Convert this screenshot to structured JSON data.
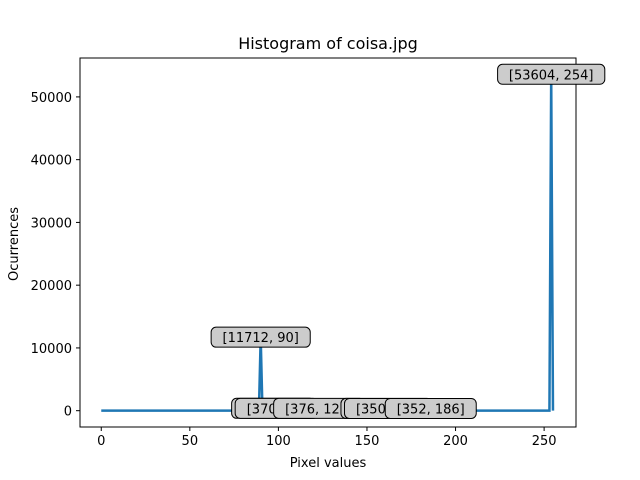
{
  "chart_data": {
    "type": "line",
    "title": "Histogram of coisa.jpg",
    "xlabel": "Pixel values",
    "ylabel": "Ocurrences",
    "xlim": [
      -12,
      268
    ],
    "ylim": [
      -2600,
      56200
    ],
    "xticks": [
      0,
      50,
      100,
      150,
      200,
      250
    ],
    "yticks": [
      0,
      10000,
      20000,
      30000,
      40000,
      50000
    ],
    "grid": false,
    "line_color": "#1f77b4",
    "series": [
      {
        "x": [
          0,
          89,
          90,
          91,
          96,
          97,
          98,
          99,
          100,
          101,
          122,
          123,
          124,
          160,
          161,
          162,
          163,
          164,
          185,
          186,
          187,
          253,
          254,
          255
        ],
        "y": [
          0,
          0,
          11712,
          0,
          0,
          380,
          0,
          370,
          0,
          0,
          0,
          376,
          0,
          0,
          360,
          0,
          350,
          0,
          0,
          352,
          0,
          0,
          53604,
          0
        ]
      }
    ],
    "annotations": [
      {
        "text": "[11712, 90]",
        "x": 90,
        "y": 11712
      },
      {
        "text": "[380, 97]",
        "x": 97,
        "y": 380
      },
      {
        "text": "[370, 99]",
        "x": 99,
        "y": 370
      },
      {
        "text": "[376, 123]",
        "x": 123,
        "y": 376
      },
      {
        "text": "[360, 161]",
        "x": 161,
        "y": 360
      },
      {
        "text": "[350, 163]",
        "x": 163,
        "y": 350
      },
      {
        "text": "[352, 186]",
        "x": 186,
        "y": 352
      },
      {
        "text": "[53604, 254]",
        "x": 254,
        "y": 53604
      }
    ]
  }
}
